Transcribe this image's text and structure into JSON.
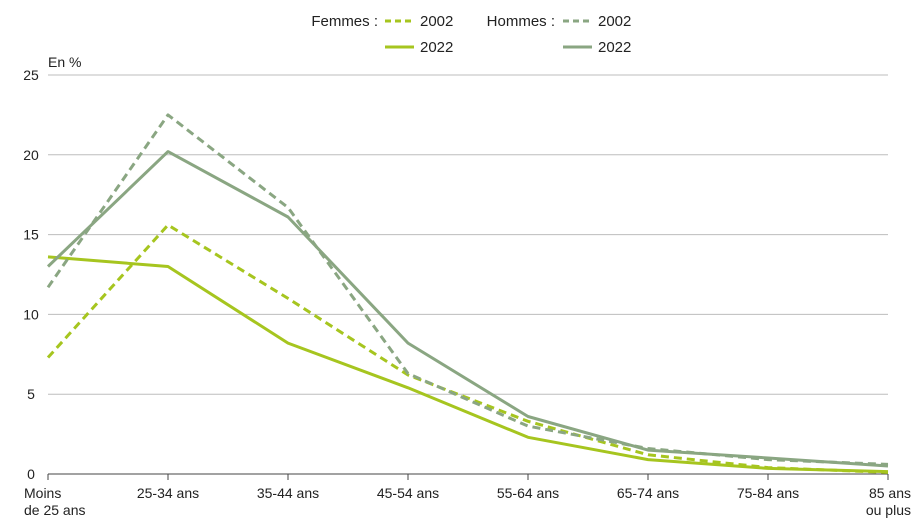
{
  "chart_data": {
    "type": "line",
    "unit_label": "En %",
    "categories": [
      [
        "Moins",
        "de 25 ans"
      ],
      [
        "25-34 ans"
      ],
      [
        "35-44 ans"
      ],
      [
        "45-54 ans"
      ],
      [
        "55-64 ans"
      ],
      [
        "65-74 ans"
      ],
      [
        "75-84 ans"
      ],
      [
        "85 ans",
        "ou plus"
      ]
    ],
    "ylim": [
      0,
      25
    ],
    "yticks": [
      0,
      5,
      10,
      15,
      20,
      25
    ],
    "grid": "horizontal",
    "legend_position": "top",
    "legend": {
      "femmes_label": "Femmes :",
      "hommes_label": "Hommes :",
      "year_2002": "2002",
      "year_2022": "2022"
    },
    "series": [
      {
        "name": "Femmes 2002",
        "group": "Femmes",
        "year": "2002",
        "color": "#a6c51f",
        "style": "dashed",
        "values": [
          7.3,
          15.6,
          11.0,
          6.2,
          3.3,
          1.2,
          0.4,
          0.1
        ]
      },
      {
        "name": "Femmes 2022",
        "group": "Femmes",
        "year": "2022",
        "color": "#a6c51f",
        "style": "solid",
        "values": [
          13.6,
          13.0,
          8.2,
          5.4,
          2.3,
          0.9,
          0.35,
          0.15
        ]
      },
      {
        "name": "Hommes 2002",
        "group": "Hommes",
        "year": "2002",
        "color": "#8aa682",
        "style": "dashed",
        "values": [
          11.7,
          22.5,
          16.7,
          6.3,
          3.0,
          1.6,
          0.9,
          0.6
        ]
      },
      {
        "name": "Hommes 2022",
        "group": "Hommes",
        "year": "2022",
        "color": "#8aa682",
        "style": "solid",
        "values": [
          13.0,
          20.2,
          16.1,
          8.2,
          3.6,
          1.5,
          1.0,
          0.5
        ]
      }
    ]
  }
}
